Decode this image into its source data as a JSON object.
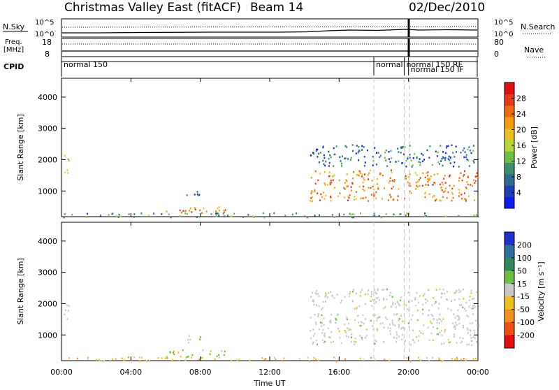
{
  "header": {
    "title": "Christmas Valley East (fitACF)",
    "beam": "Beam 14",
    "date": "02/Dec/2010"
  },
  "status_panels": {
    "noise": {
      "left_label": "N.Sky",
      "right_label": "N.Search",
      "left_ticks": [
        "10^5",
        "10^0"
      ],
      "right_ticks": [
        "10^5",
        "10^0"
      ]
    },
    "freq": {
      "left_label_1": "Freq.",
      "left_label_2": "[MHz]",
      "right_label": "Nave",
      "left_ticks": [
        "18",
        "8"
      ],
      "right_ticks": [
        "80",
        "0"
      ]
    },
    "cpid": {
      "label": "CPID",
      "segments": [
        {
          "start": 0.0,
          "end": 18.0,
          "text": "normal 150"
        },
        {
          "start": 18.0,
          "end": 19.75,
          "text": "normal"
        },
        {
          "start": 19.75,
          "end": 20.0,
          "text": "normal 150 RF"
        },
        {
          "start": 20.0,
          "end": 24.0,
          "text": "normal 150 IF"
        }
      ]
    }
  },
  "chart_data": [
    {
      "type": "heatmap",
      "name": "power",
      "xlabel": "",
      "ylabel": "Slant Range [km]",
      "x_range_hours": [
        0,
        24
      ],
      "ylim": [
        180,
        4600
      ],
      "y_ticks": [
        1000,
        2000,
        3000,
        4000
      ],
      "colorbar": {
        "label": "Power [dB]",
        "ticks": [
          4,
          8,
          12,
          16,
          20,
          24,
          28
        ],
        "range": [
          0,
          32
        ],
        "colors": [
          "#0a1cf0",
          "#1f3fb8",
          "#2f6a8f",
          "#3b8f6a",
          "#6fbf3f",
          "#b7d83a",
          "#f0c020",
          "#f59a10",
          "#f06a10",
          "#e83818",
          "#e01010"
        ]
      },
      "regions": [
        {
          "t0": 0.1,
          "t1": 0.4,
          "r0": 1450,
          "r1": 2250,
          "level": 14
        },
        {
          "t0": 6.0,
          "t1": 9.5,
          "r0": 300,
          "r1": 550,
          "level": 24
        },
        {
          "t0": 7.0,
          "t1": 8.0,
          "r0": 750,
          "r1": 1000,
          "level": 6
        },
        {
          "t0": 14.3,
          "t1": 24.0,
          "r0": 700,
          "r1": 1700,
          "level": 24
        },
        {
          "t0": 14.3,
          "t1": 24.0,
          "r0": 1800,
          "r1": 2500,
          "level": 6
        },
        {
          "t0": 0.0,
          "t1": 24.0,
          "r0": 180,
          "r1": 320,
          "level": 10
        }
      ]
    },
    {
      "type": "heatmap",
      "name": "velocity",
      "xlabel": "Time UT",
      "ylabel": "Slant Range [km]",
      "x_range_hours": [
        0,
        24
      ],
      "x_ticks": [
        "00:00",
        "04:00",
        "08:00",
        "12:00",
        "16:00",
        "20:00",
        "00:00"
      ],
      "ylim": [
        180,
        4600
      ],
      "y_ticks": [
        1000,
        2000,
        3000,
        4000
      ],
      "colorbar": {
        "label": "Velocity [m s⁻¹]",
        "ticks": [
          "200",
          "100",
          "50",
          "15",
          "-15",
          "-50",
          "-100",
          "-200"
        ],
        "colors": [
          "#1f2fd0",
          "#2a6fa0",
          "#2f8a5a",
          "#6ac040",
          "#c8c8c8",
          "#f0c020",
          "#f59020",
          "#f05010",
          "#e01010"
        ]
      },
      "regions": [
        {
          "t0": 0.1,
          "t1": 0.4,
          "r0": 1450,
          "r1": 2250,
          "level": 0
        },
        {
          "t0": 6.0,
          "t1": 9.5,
          "r0": 300,
          "r1": 550,
          "level": 1
        },
        {
          "t0": 7.0,
          "t1": 8.0,
          "r0": 750,
          "r1": 1000,
          "level": 0
        },
        {
          "t0": 14.3,
          "t1": 24.0,
          "r0": 700,
          "r1": 1700,
          "level": 0
        },
        {
          "t0": 14.3,
          "t1": 24.0,
          "r0": 1800,
          "r1": 2500,
          "level": 0
        },
        {
          "t0": 0.0,
          "t1": 24.0,
          "r0": 180,
          "r1": 320,
          "level": -1
        }
      ]
    }
  ]
}
